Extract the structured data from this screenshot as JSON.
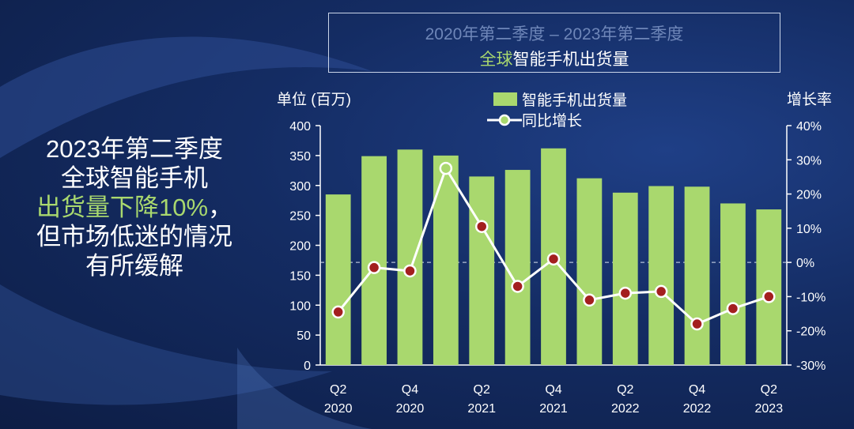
{
  "headline": {
    "line1": "2023年第二季度",
    "line2": "全球智能手机",
    "line3_green": "出货量下降10%",
    "line3_rest": "，",
    "line4": "但市场低迷的情况",
    "line5": "有所缓解"
  },
  "chart_title": {
    "line1": "2020年第二季度 – 2023年第二季度",
    "line2_green": "全球",
    "line2_rest": "智能手机出货量"
  },
  "colors": {
    "bar": "#a9d86e",
    "line": "#ffffff",
    "marker_fill": "#a31f1f",
    "highlight_marker_fill": "#a9d86e",
    "zero_line": "#cfd8e8"
  },
  "chart_data": {
    "type": "bar",
    "ylabel": "单位 (百万)",
    "y2label": "增长率",
    "ylim": [
      0,
      400
    ],
    "yticks": [
      "0",
      "50",
      "100",
      "150",
      "200",
      "250",
      "300",
      "350",
      "400"
    ],
    "y2lim": [
      -30,
      40
    ],
    "y2ticks": [
      "-30%",
      "-20%",
      "-10%",
      "0%",
      "10%",
      "20%",
      "30%",
      "40%"
    ],
    "x_tick_labels": [
      {
        "index": 0,
        "quarter": "Q2",
        "year": "2020"
      },
      {
        "index": 2,
        "quarter": "Q4",
        "year": "2020"
      },
      {
        "index": 4,
        "quarter": "Q2",
        "year": "2021"
      },
      {
        "index": 6,
        "quarter": "Q4",
        "year": "2021"
      },
      {
        "index": 8,
        "quarter": "Q2",
        "year": "2022"
      },
      {
        "index": 10,
        "quarter": "Q4",
        "year": "2022"
      },
      {
        "index": 12,
        "quarter": "Q2",
        "year": "2023"
      }
    ],
    "series": [
      {
        "name": "智能手机出货量",
        "kind": "bar",
        "axis": "left",
        "values": [
          285,
          349,
          360,
          350,
          315,
          326,
          362,
          312,
          288,
          299,
          298,
          270,
          260
        ]
      },
      {
        "name": "同比增长",
        "kind": "line",
        "axis": "right",
        "values": [
          -14.5,
          -1.5,
          -2.5,
          27.5,
          10.5,
          -7,
          1,
          -11,
          -9,
          -8.5,
          -18,
          -13.5,
          -10
        ]
      }
    ],
    "grid": false,
    "legend": "top"
  }
}
